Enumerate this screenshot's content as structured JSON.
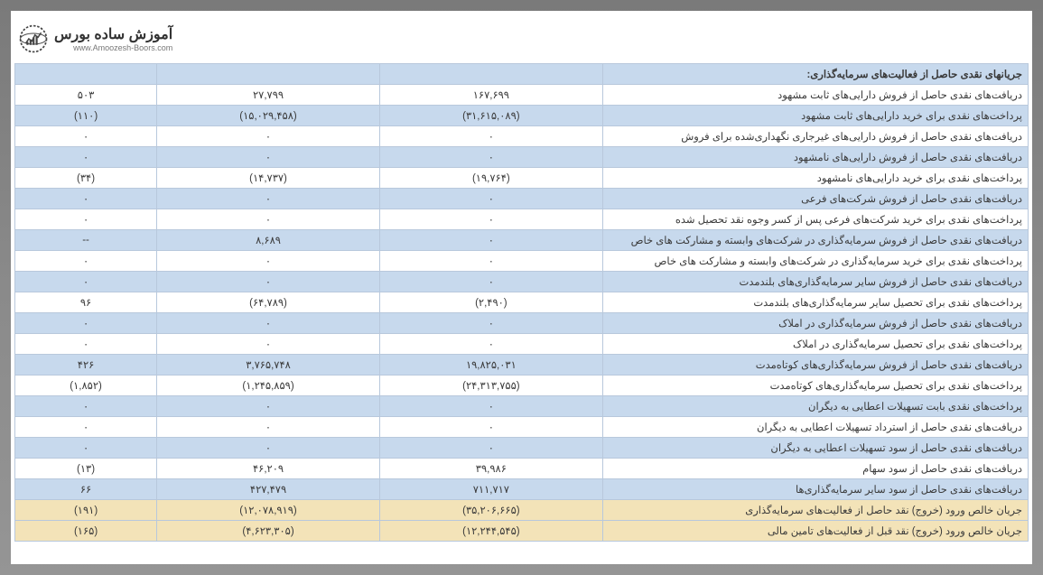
{
  "logo": {
    "title": "آموزش ساده بورس",
    "subtitle": "www.Amoozesh-Boors.com"
  },
  "table": {
    "colors": {
      "blue_row_bg": "#c7d9ed",
      "white_row_bg": "#ffffff",
      "yellow_row_bg": "#f3e3b8",
      "border": "#b8c8dc",
      "negative": "#d0021b",
      "positive": "#2a5eaa",
      "text": "#3a3a3a"
    },
    "font_size_pt": 9,
    "rows": [
      {
        "class": "blue",
        "header": true,
        "label": "جریانهای نقدی حاصل از فعالیت‌های سرمایه‌گذاری:",
        "c1": "",
        "c2": "",
        "c3": ""
      },
      {
        "class": "white",
        "label": "دریافت‌های نقدی حاصل از فروش دارایی‌های ثابت مشهود",
        "c1": {
          "v": "۱۶۷,۶۹۹"
        },
        "c2": {
          "v": "۲۷,۷۹۹"
        },
        "c3": {
          "v": "۵۰۳",
          "cls": "pos"
        }
      },
      {
        "class": "blue",
        "label": "پرداخت‌های نقدی برای خرید دارایی‌های ثابت مشهود",
        "c1": {
          "v": "(۳۱,۶۱۵,۰۸۹)",
          "cls": "neg"
        },
        "c2": {
          "v": "(۱۵,۰۲۹,۴۵۸)",
          "cls": "neg"
        },
        "c3": {
          "v": "(۱۱۰)",
          "cls": "neg"
        }
      },
      {
        "class": "white",
        "label": "دریافت‌های نقدی حاصل از فروش دارایی‌های غیرجاری نگهداری‌شده برای فروش",
        "c1": {
          "v": "۰"
        },
        "c2": {
          "v": "۰"
        },
        "c3": {
          "v": "۰",
          "cls": "pos"
        }
      },
      {
        "class": "blue",
        "label": "دریافت‌های نقدی حاصل از فروش دارایی‌های نامشهود",
        "c1": {
          "v": "۰"
        },
        "c2": {
          "v": "۰"
        },
        "c3": {
          "v": "۰",
          "cls": "pos"
        }
      },
      {
        "class": "white",
        "label": "پرداخت‌های نقدی برای خرید دارایی‌های نامشهود",
        "c1": {
          "v": "(۱۹,۷۶۴)",
          "cls": "neg"
        },
        "c2": {
          "v": "(۱۴,۷۳۷)",
          "cls": "neg"
        },
        "c3": {
          "v": "(۳۴)",
          "cls": "neg"
        }
      },
      {
        "class": "blue",
        "label": "دریافت‌های نقدی حاصل از فروش شرکت‌های فرعی",
        "c1": {
          "v": "۰"
        },
        "c2": {
          "v": "۰"
        },
        "c3": {
          "v": "۰",
          "cls": "pos"
        }
      },
      {
        "class": "white",
        "label": "پرداخت‌های نقدی برای خرید شرکت‌های فرعی پس از کسر وجوه نقد تحصیل شده",
        "c1": {
          "v": "۰"
        },
        "c2": {
          "v": "۰"
        },
        "c3": {
          "v": "۰",
          "cls": "pos"
        }
      },
      {
        "class": "blue",
        "label": "دریافت‌های نقدی حاصل از فروش سرمایه‌گذاری در شرکت‌های وابسته و مشارکت های خاص",
        "c1": {
          "v": "۰"
        },
        "c2": {
          "v": "۸,۶۸۹"
        },
        "c3": {
          "v": "--"
        }
      },
      {
        "class": "white",
        "label": "پرداخت‌های نقدی برای خرید سرمایه‌گذاری در شرکت‌های وابسته و مشارکت های خاص",
        "c1": {
          "v": "۰"
        },
        "c2": {
          "v": "۰"
        },
        "c3": {
          "v": "۰",
          "cls": "pos"
        }
      },
      {
        "class": "blue",
        "label": "دریافت‌های نقدی حاصل از فروش سایر سرمایه‌گذاری‌های بلندمدت",
        "c1": {
          "v": "۰"
        },
        "c2": {
          "v": "۰"
        },
        "c3": {
          "v": "۰",
          "cls": "pos"
        }
      },
      {
        "class": "white",
        "label": "پرداخت‌های نقدی برای تحصیل سایر سرمایه‌گذاری‌های بلندمدت",
        "c1": {
          "v": "(۲,۴۹۰)",
          "cls": "neg"
        },
        "c2": {
          "v": "(۶۴,۷۸۹)",
          "cls": "neg"
        },
        "c3": {
          "v": "۹۶",
          "cls": "pos"
        }
      },
      {
        "class": "blue",
        "label": "دریافت‌های نقدی حاصل از فروش سرمایه‌گذاری در املاک",
        "c1": {
          "v": "۰"
        },
        "c2": {
          "v": "۰"
        },
        "c3": {
          "v": "۰",
          "cls": "pos"
        }
      },
      {
        "class": "white",
        "label": "پرداخت‌های نقدی برای تحصیل سرمایه‌گذاری در املاک",
        "c1": {
          "v": "۰"
        },
        "c2": {
          "v": "۰"
        },
        "c3": {
          "v": "۰",
          "cls": "pos"
        }
      },
      {
        "class": "blue",
        "label": "دریافت‌های نقدی حاصل از فروش سرمایه‌گذاری‌های کوتاه‌مدت",
        "c1": {
          "v": "۱۹,۸۲۵,۰۳۱"
        },
        "c2": {
          "v": "۳,۷۶۵,۷۴۸"
        },
        "c3": {
          "v": "۴۲۶",
          "cls": "pos"
        }
      },
      {
        "class": "white",
        "label": "پرداخت‌های نقدی برای تحصیل سرمایه‌گذاری‌های کوتاه‌مدت",
        "c1": {
          "v": "(۲۴,۳۱۳,۷۵۵)",
          "cls": "neg"
        },
        "c2": {
          "v": "(۱,۲۴۵,۸۵۹)",
          "cls": "neg"
        },
        "c3": {
          "v": "(۱,۸۵۲)",
          "cls": "neg"
        }
      },
      {
        "class": "blue",
        "label": "پرداخت‌های نقدی بابت تسهیلات اعطایی به دیگران",
        "c1": {
          "v": "۰"
        },
        "c2": {
          "v": "۰"
        },
        "c3": {
          "v": "۰",
          "cls": "pos"
        }
      },
      {
        "class": "white",
        "label": "دریافت‌های نقدی حاصل از استرداد تسهیلات اعطایی به دیگران",
        "c1": {
          "v": "۰"
        },
        "c2": {
          "v": "۰"
        },
        "c3": {
          "v": "۰",
          "cls": "pos"
        }
      },
      {
        "class": "blue",
        "label": "دریافت‌های نقدی حاصل از سود تسهیلات اعطایی به دیگران",
        "c1": {
          "v": "۰"
        },
        "c2": {
          "v": "۰"
        },
        "c3": {
          "v": "۰",
          "cls": "pos"
        }
      },
      {
        "class": "white",
        "label": "دریافت‌های نقدی حاصل از سود سهام",
        "c1": {
          "v": "۳۹,۹۸۶"
        },
        "c2": {
          "v": "۴۶,۲۰۹"
        },
        "c3": {
          "v": "(۱۳)",
          "cls": "neg"
        }
      },
      {
        "class": "blue",
        "label": "دریافت‌های نقدی حاصل از سود سایر سرمایه‌گذاری‌ها",
        "c1": {
          "v": "۷۱۱,۷۱۷"
        },
        "c2": {
          "v": "۴۲۷,۴۷۹"
        },
        "c3": {
          "v": "۶۶",
          "cls": "pos"
        }
      },
      {
        "class": "yellow",
        "label": "جریان خالص ورود (خروج) نقد حاصل از فعالیت‌های سرمایه‌گذاری",
        "c1": {
          "v": "(۳۵,۲۰۶,۶۶۵)",
          "cls": "neg"
        },
        "c2": {
          "v": "(۱۲,۰۷۸,۹۱۹)",
          "cls": "neg"
        },
        "c3": {
          "v": "(۱۹۱)",
          "cls": "neg"
        }
      },
      {
        "class": "yellow",
        "label": "جریان خالص ورود (خروج) نقد قبل از فعالیت‌های تامین مالی",
        "c1": {
          "v": "(۱۲,۲۴۴,۵۴۵)",
          "cls": "neg"
        },
        "c2": {
          "v": "(۴,۶۲۳,۳۰۵)",
          "cls": "neg"
        },
        "c3": {
          "v": "(۱۶۵)",
          "cls": "neg"
        }
      }
    ]
  }
}
